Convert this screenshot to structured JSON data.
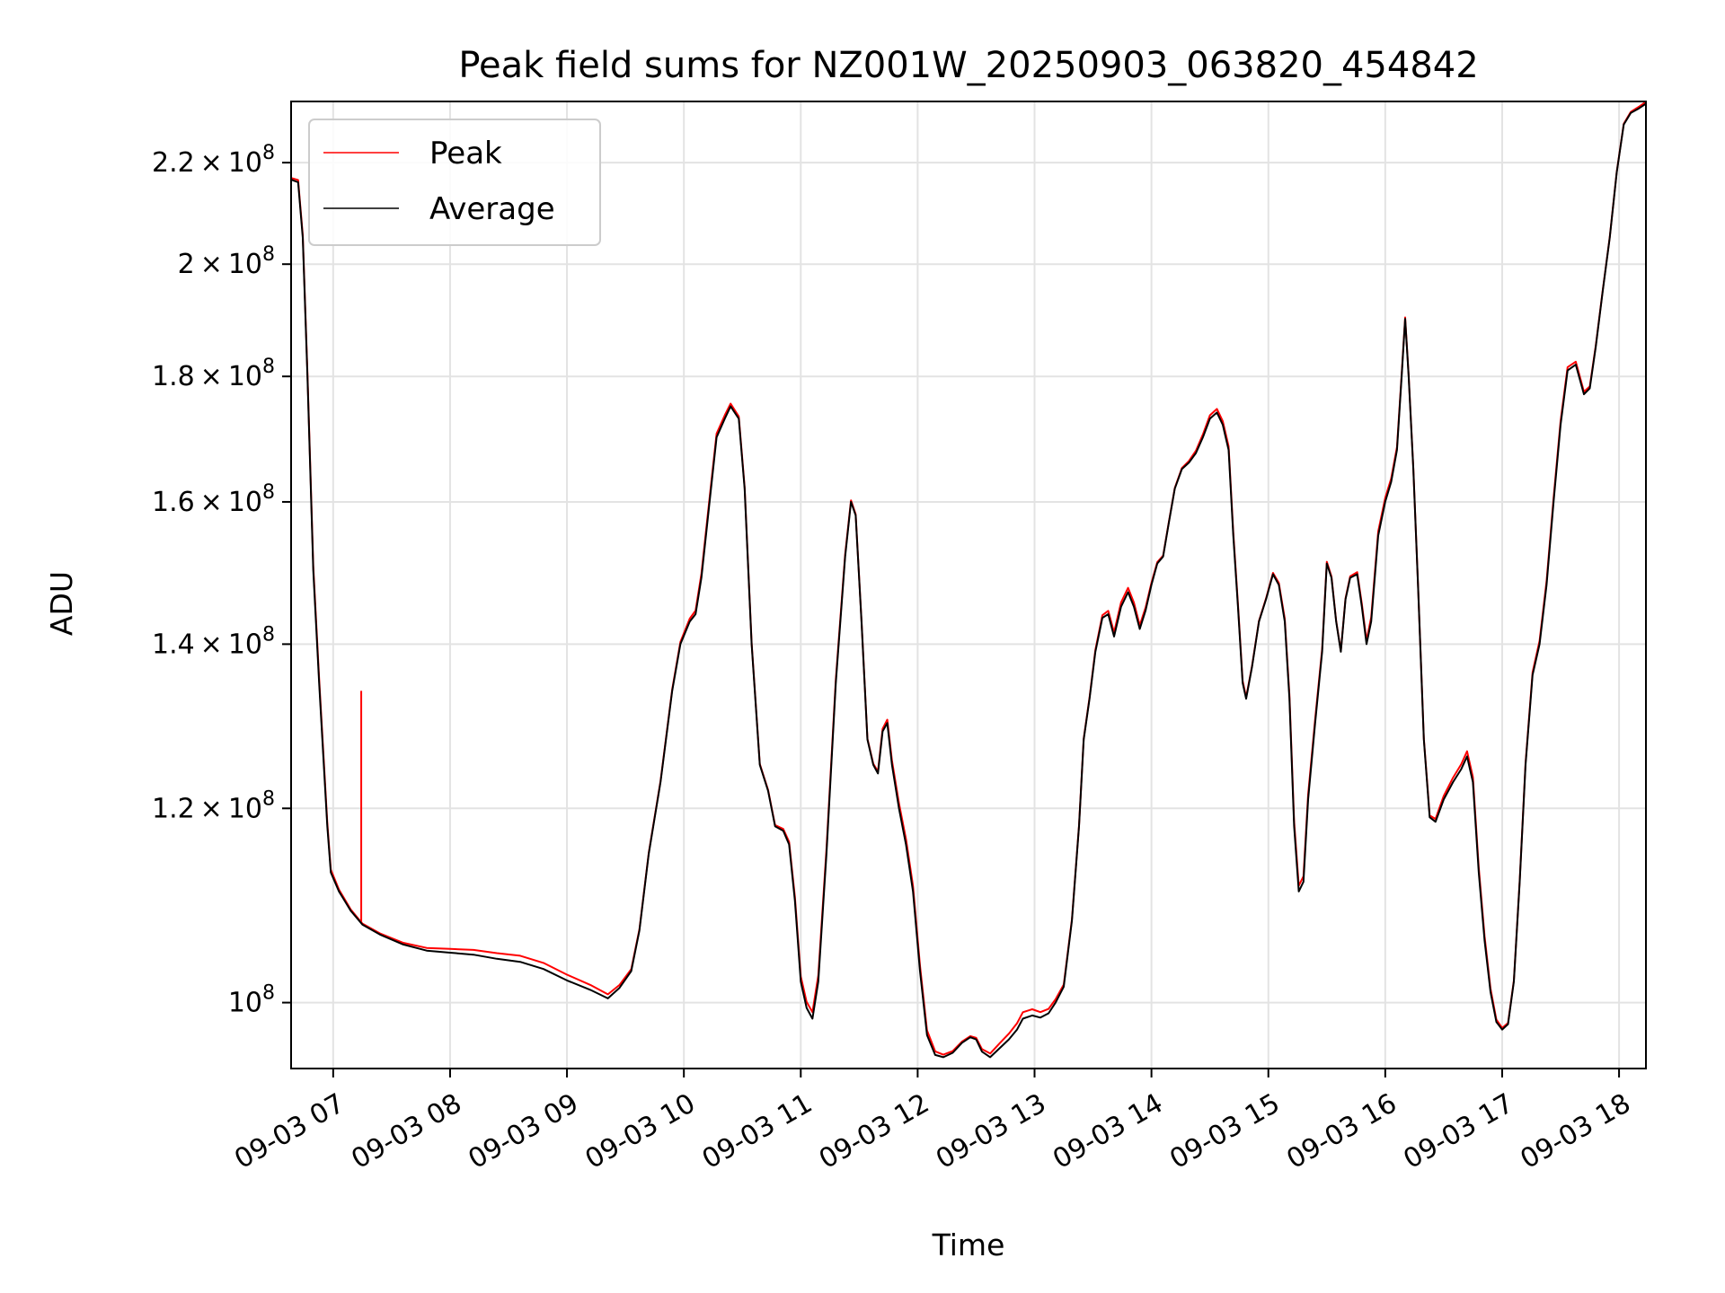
{
  "chart_data": {
    "type": "line",
    "title": "Peak field sums for NZ001W_20250903_063820_454842",
    "xlabel": "Time",
    "ylabel": "ADU",
    "yscale": "log",
    "grid": true,
    "legend_position": "top-left",
    "x_tick_labels": [
      "09-03 07",
      "09-03 08",
      "09-03 09",
      "09-03 10",
      "09-03 11",
      "09-03 12",
      "09-03 13",
      "09-03 14",
      "09-03 15",
      "09-03 16",
      "09-03 17",
      "09-03 18"
    ],
    "y_ticks": [
      {
        "value": 100000000,
        "mantissa": "",
        "base": "10",
        "exp": "8"
      },
      {
        "value": 120000000,
        "mantissa": "1.2 × ",
        "base": "10",
        "exp": "8"
      },
      {
        "value": 140000000,
        "mantissa": "1.4 × ",
        "base": "10",
        "exp": "8"
      },
      {
        "value": 160000000,
        "mantissa": "1.6 × ",
        "base": "10",
        "exp": "8"
      },
      {
        "value": 180000000,
        "mantissa": "1.8 × ",
        "base": "10",
        "exp": "8"
      },
      {
        "value": 200000000,
        "mantissa": "2 × ",
        "base": "10",
        "exp": "8"
      },
      {
        "value": 220000000,
        "mantissa": "2.2 × ",
        "base": "10",
        "exp": "8"
      }
    ],
    "x_range_hours": [
      6.64,
      18.23
    ],
    "y_range": [
      94000000,
      233000000
    ],
    "series": [
      {
        "name": "Peak",
        "color": "#ff0000"
      },
      {
        "name": "Average",
        "color": "#000000"
      }
    ],
    "average_points": [
      [
        6.64,
        216.5
      ],
      [
        6.7,
        216.0
      ],
      [
        6.74,
        205.0
      ],
      [
        6.78,
        180.0
      ],
      [
        6.83,
        150.0
      ],
      [
        6.88,
        135.0
      ],
      [
        6.92,
        125.0
      ],
      [
        6.95,
        118.0
      ],
      [
        6.98,
        113.0
      ],
      [
        7.05,
        111.0
      ],
      [
        7.15,
        109.0
      ],
      [
        7.25,
        107.6
      ],
      [
        7.4,
        106.6
      ],
      [
        7.6,
        105.6
      ],
      [
        7.8,
        105.0
      ],
      [
        8.0,
        104.8
      ],
      [
        8.2,
        104.6
      ],
      [
        8.4,
        104.2
      ],
      [
        8.6,
        103.9
      ],
      [
        8.8,
        103.2
      ],
      [
        9.0,
        102.1
      ],
      [
        9.2,
        101.2
      ],
      [
        9.35,
        100.4
      ],
      [
        9.45,
        101.4
      ],
      [
        9.55,
        103.0
      ],
      [
        9.62,
        107.0
      ],
      [
        9.7,
        115.0
      ],
      [
        9.8,
        123.0
      ],
      [
        9.9,
        134.0
      ],
      [
        9.97,
        140.0
      ],
      [
        10.05,
        143.0
      ],
      [
        10.1,
        144.0
      ],
      [
        10.15,
        149.0
      ],
      [
        10.22,
        160.0
      ],
      [
        10.28,
        170.0
      ],
      [
        10.35,
        173.0
      ],
      [
        10.4,
        175.0
      ],
      [
        10.47,
        173.0
      ],
      [
        10.52,
        162.0
      ],
      [
        10.58,
        140.0
      ],
      [
        10.65,
        125.0
      ],
      [
        10.72,
        122.0
      ],
      [
        10.78,
        118.0
      ],
      [
        10.85,
        117.5
      ],
      [
        10.9,
        116.0
      ],
      [
        10.95,
        110.0
      ],
      [
        11.0,
        102.0
      ],
      [
        11.05,
        99.5
      ],
      [
        11.1,
        98.5
      ],
      [
        11.15,
        102.0
      ],
      [
        11.22,
        115.0
      ],
      [
        11.3,
        135.0
      ],
      [
        11.38,
        152.0
      ],
      [
        11.43,
        160.0
      ],
      [
        11.47,
        158.0
      ],
      [
        11.52,
        143.0
      ],
      [
        11.57,
        128.0
      ],
      [
        11.62,
        125.0
      ],
      [
        11.66,
        124.0
      ],
      [
        11.7,
        129.0
      ],
      [
        11.74,
        130.0
      ],
      [
        11.78,
        125.0
      ],
      [
        11.84,
        120.0
      ],
      [
        11.9,
        116.0
      ],
      [
        11.96,
        111.0
      ],
      [
        12.02,
        103.0
      ],
      [
        12.08,
        97.0
      ],
      [
        12.15,
        95.2
      ],
      [
        12.22,
        95.0
      ],
      [
        12.3,
        95.4
      ],
      [
        12.38,
        96.3
      ],
      [
        12.45,
        96.8
      ],
      [
        12.5,
        96.6
      ],
      [
        12.55,
        95.5
      ],
      [
        12.62,
        95.0
      ],
      [
        12.7,
        95.8
      ],
      [
        12.78,
        96.6
      ],
      [
        12.85,
        97.5
      ],
      [
        12.9,
        98.5
      ],
      [
        12.98,
        98.8
      ],
      [
        13.05,
        98.6
      ],
      [
        13.12,
        99.0
      ],
      [
        13.18,
        100.0
      ],
      [
        13.25,
        101.5
      ],
      [
        13.32,
        108.0
      ],
      [
        13.38,
        118.0
      ],
      [
        13.42,
        128.0
      ],
      [
        13.47,
        133.0
      ],
      [
        13.52,
        139.0
      ],
      [
        13.58,
        143.5
      ],
      [
        13.63,
        144.0
      ],
      [
        13.68,
        141.0
      ],
      [
        13.74,
        145.0
      ],
      [
        13.8,
        147.0
      ],
      [
        13.85,
        145.0
      ],
      [
        13.9,
        142.0
      ],
      [
        13.95,
        144.5
      ],
      [
        14.0,
        148.0
      ],
      [
        14.05,
        151.0
      ],
      [
        14.1,
        152.0
      ],
      [
        14.15,
        157.0
      ],
      [
        14.2,
        162.0
      ],
      [
        14.26,
        165.0
      ],
      [
        14.32,
        166.0
      ],
      [
        14.38,
        167.5
      ],
      [
        14.44,
        170.0
      ],
      [
        14.5,
        173.0
      ],
      [
        14.56,
        174.0
      ],
      [
        14.61,
        172.0
      ],
      [
        14.66,
        168.0
      ],
      [
        14.7,
        155.0
      ],
      [
        14.74,
        145.0
      ],
      [
        14.78,
        135.0
      ],
      [
        14.81,
        133.0
      ],
      [
        14.86,
        137.0
      ],
      [
        14.92,
        143.0
      ],
      [
        14.98,
        146.0
      ],
      [
        15.04,
        149.5
      ],
      [
        15.09,
        148.0
      ],
      [
        15.14,
        143.0
      ],
      [
        15.18,
        133.0
      ],
      [
        15.22,
        118.0
      ],
      [
        15.26,
        111.0
      ],
      [
        15.3,
        112.0
      ],
      [
        15.34,
        121.0
      ],
      [
        15.4,
        130.0
      ],
      [
        15.46,
        139.0
      ],
      [
        15.5,
        151.0
      ],
      [
        15.54,
        149.0
      ],
      [
        15.58,
        143.0
      ],
      [
        15.62,
        139.0
      ],
      [
        15.66,
        146.0
      ],
      [
        15.7,
        149.0
      ],
      [
        15.76,
        149.5
      ],
      [
        15.8,
        145.0
      ],
      [
        15.84,
        140.0
      ],
      [
        15.88,
        143.0
      ],
      [
        15.94,
        155.0
      ],
      [
        16.0,
        160.0
      ],
      [
        16.05,
        163.0
      ],
      [
        16.1,
        168.0
      ],
      [
        16.14,
        180.0
      ],
      [
        16.17,
        190.0
      ],
      [
        16.2,
        180.0
      ],
      [
        16.24,
        165.0
      ],
      [
        16.28,
        148.0
      ],
      [
        16.33,
        128.0
      ],
      [
        16.38,
        119.0
      ],
      [
        16.43,
        118.5
      ],
      [
        16.5,
        121.0
      ],
      [
        16.58,
        123.0
      ],
      [
        16.65,
        124.5
      ],
      [
        16.7,
        126.0
      ],
      [
        16.75,
        123.0
      ],
      [
        16.8,
        113.0
      ],
      [
        16.85,
        106.0
      ],
      [
        16.9,
        101.0
      ],
      [
        16.95,
        98.2
      ],
      [
        17.0,
        97.5
      ],
      [
        17.05,
        98.0
      ],
      [
        17.1,
        102.0
      ],
      [
        17.15,
        112.0
      ],
      [
        17.2,
        125.0
      ],
      [
        17.26,
        136.0
      ],
      [
        17.32,
        140.0
      ],
      [
        17.38,
        148.0
      ],
      [
        17.44,
        160.0
      ],
      [
        17.5,
        172.0
      ],
      [
        17.56,
        181.0
      ],
      [
        17.63,
        182.0
      ],
      [
        17.7,
        177.0
      ],
      [
        17.75,
        178.0
      ],
      [
        17.8,
        185.0
      ],
      [
        17.86,
        195.0
      ],
      [
        17.92,
        205.0
      ],
      [
        17.98,
        218.0
      ],
      [
        18.04,
        228.0
      ],
      [
        18.1,
        230.5
      ],
      [
        18.17,
        231.5
      ],
      [
        18.23,
        232.5
      ]
    ],
    "peak_spike": {
      "hour": 7.24,
      "value": 134.0
    }
  }
}
